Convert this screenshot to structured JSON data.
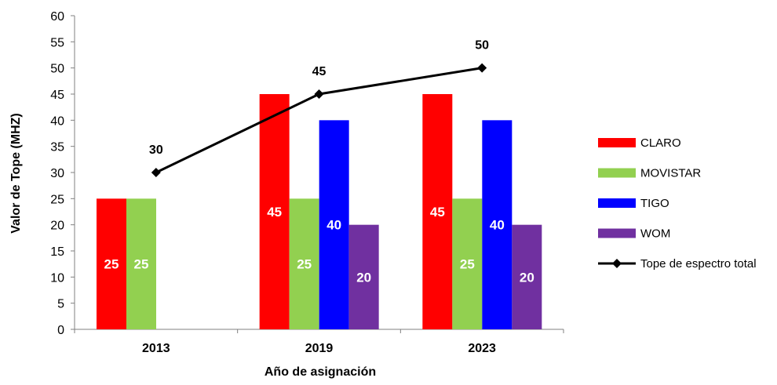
{
  "chart_data": {
    "type": "bar",
    "categories": [
      "2013",
      "2019",
      "2023"
    ],
    "series": [
      {
        "name": "CLARO",
        "color": "#ff0000",
        "values": [
          25,
          45,
          45
        ]
      },
      {
        "name": "MOVISTAR",
        "color": "#92d050",
        "values": [
          25,
          25,
          25
        ]
      },
      {
        "name": "TIGO",
        "color": "#0000ff",
        "values": [
          null,
          40,
          40
        ]
      },
      {
        "name": "WOM",
        "color": "#7030a0",
        "values": [
          null,
          20,
          20
        ]
      }
    ],
    "line_series": {
      "name": "Tope de espectro total",
      "color": "#000000",
      "marker": "diamond",
      "values": [
        30,
        45,
        50
      ]
    },
    "xlabel": "Año de asignación",
    "ylabel": "Valor de Tope (MHZ)",
    "ylim": [
      0,
      60
    ],
    "yticks": [
      0,
      5,
      10,
      15,
      20,
      25,
      30,
      35,
      40,
      45,
      50,
      55,
      60
    ],
    "grid": false,
    "legend_position": "right"
  }
}
